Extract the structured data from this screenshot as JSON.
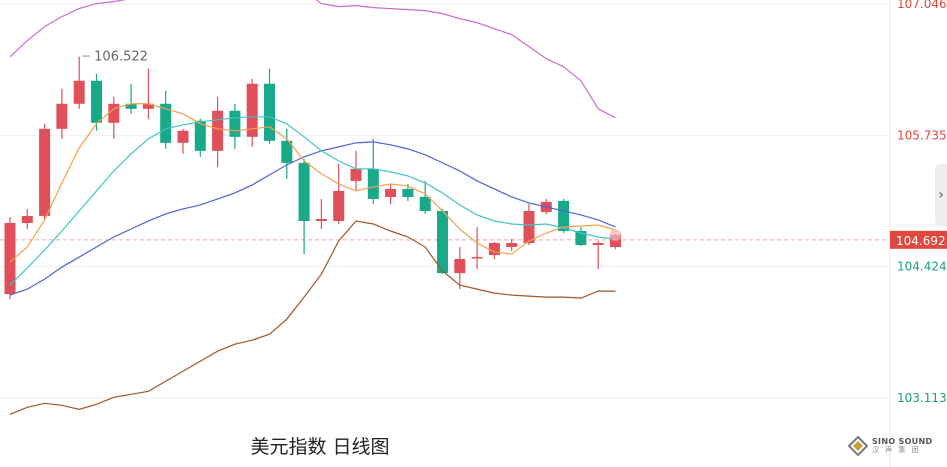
{
  "chart_data": {
    "type": "candlestick",
    "title": "美元指数 日线图",
    "y_ticks": [
      {
        "value": 107.046,
        "label": "107.046",
        "color": "#e0473e"
      },
      {
        "value": 105.735,
        "label": "105.735",
        "color": "#e0473e"
      },
      {
        "value": 104.424,
        "label": "104.424",
        "color": "#1a9f84"
      },
      {
        "value": 103.113,
        "label": "103.113",
        "color": "#1a9f84"
      }
    ],
    "current_price": {
      "value": 104.692,
      "label": "104.692",
      "color": "#e0473e"
    },
    "high_annotation": {
      "label": "106.522",
      "value": 106.522
    },
    "ylim": [
      102.95,
      107.05
    ],
    "colors": {
      "up": "#e0505a",
      "down": "#17a98a",
      "ma_short": "#f4a24a",
      "ma_mid": "#41c6c4",
      "ma_long": "#4f63d8",
      "boll_upper": "#cc6ccc",
      "boll_lower": "#a2562a"
    },
    "candles": [
      {
        "o": 104.15,
        "h": 104.92,
        "l": 104.1,
        "c": 104.86
      },
      {
        "o": 104.86,
        "h": 105.0,
        "l": 104.8,
        "c": 104.93
      },
      {
        "o": 104.93,
        "h": 105.85,
        "l": 104.9,
        "c": 105.8
      },
      {
        "o": 105.8,
        "h": 106.2,
        "l": 105.7,
        "c": 106.05
      },
      {
        "o": 106.05,
        "h": 106.52,
        "l": 106.0,
        "c": 106.28
      },
      {
        "o": 106.28,
        "h": 106.35,
        "l": 105.78,
        "c": 105.86
      },
      {
        "o": 105.86,
        "h": 106.12,
        "l": 105.7,
        "c": 106.05
      },
      {
        "o": 106.05,
        "h": 106.25,
        "l": 105.95,
        "c": 106.0
      },
      {
        "o": 106.0,
        "h": 106.4,
        "l": 105.9,
        "c": 106.05
      },
      {
        "o": 106.05,
        "h": 106.18,
        "l": 105.6,
        "c": 105.66
      },
      {
        "o": 105.66,
        "h": 105.8,
        "l": 105.55,
        "c": 105.78
      },
      {
        "o": 105.88,
        "h": 105.9,
        "l": 105.52,
        "c": 105.58
      },
      {
        "o": 105.58,
        "h": 106.12,
        "l": 105.42,
        "c": 105.98
      },
      {
        "o": 105.98,
        "h": 106.05,
        "l": 105.6,
        "c": 105.72
      },
      {
        "o": 105.72,
        "h": 106.3,
        "l": 105.62,
        "c": 106.25
      },
      {
        "o": 106.25,
        "h": 106.4,
        "l": 105.65,
        "c": 105.68
      },
      {
        "o": 105.68,
        "h": 105.8,
        "l": 105.3,
        "c": 105.46
      },
      {
        "o": 105.46,
        "h": 105.5,
        "l": 104.55,
        "c": 104.88
      },
      {
        "o": 104.88,
        "h": 105.1,
        "l": 104.8,
        "c": 104.9
      },
      {
        "o": 104.88,
        "h": 105.45,
        "l": 104.85,
        "c": 105.18
      },
      {
        "o": 105.28,
        "h": 105.58,
        "l": 105.18,
        "c": 105.4
      },
      {
        "o": 105.4,
        "h": 105.7,
        "l": 105.05,
        "c": 105.1
      },
      {
        "o": 105.12,
        "h": 105.25,
        "l": 105.05,
        "c": 105.2
      },
      {
        "o": 105.2,
        "h": 105.25,
        "l": 105.08,
        "c": 105.12
      },
      {
        "o": 105.12,
        "h": 105.28,
        "l": 104.95,
        "c": 104.98
      },
      {
        "o": 104.98,
        "h": 105.0,
        "l": 104.35,
        "c": 104.36
      },
      {
        "o": 104.36,
        "h": 104.62,
        "l": 104.2,
        "c": 104.5
      },
      {
        "o": 104.52,
        "h": 104.82,
        "l": 104.4,
        "c": 104.52
      },
      {
        "o": 104.54,
        "h": 104.67,
        "l": 104.5,
        "c": 104.66
      },
      {
        "o": 104.62,
        "h": 104.7,
        "l": 104.58,
        "c": 104.66
      },
      {
        "o": 104.66,
        "h": 105.05,
        "l": 104.64,
        "c": 104.98
      },
      {
        "o": 104.97,
        "h": 105.1,
        "l": 104.95,
        "c": 105.07
      },
      {
        "o": 105.08,
        "h": 105.1,
        "l": 104.76,
        "c": 104.78
      },
      {
        "o": 104.78,
        "h": 104.82,
        "l": 104.63,
        "c": 104.64
      },
      {
        "o": 104.64,
        "h": 104.68,
        "l": 104.4,
        "c": 104.66
      },
      {
        "o": 104.62,
        "h": 104.75,
        "l": 104.6,
        "c": 104.74
      }
    ],
    "ma_short": [
      104.47,
      104.62,
      104.89,
      105.26,
      105.61,
      105.85,
      106.0,
      106.05,
      106.05,
      106.0,
      105.95,
      105.85,
      105.8,
      105.78,
      105.8,
      105.82,
      105.7,
      105.48,
      105.35,
      105.25,
      105.18,
      105.22,
      105.25,
      105.23,
      105.15,
      104.98,
      104.8,
      104.66,
      104.57,
      104.55,
      104.68,
      104.76,
      104.82,
      104.83,
      104.84,
      104.79
    ],
    "ma_mid": [
      104.24,
      104.41,
      104.59,
      104.78,
      104.98,
      105.18,
      105.38,
      105.55,
      105.7,
      105.8,
      105.84,
      105.87,
      105.89,
      105.91,
      105.92,
      105.92,
      105.85,
      105.72,
      105.58,
      105.48,
      105.4,
      105.4,
      105.37,
      105.33,
      105.26,
      105.16,
      105.04,
      104.94,
      104.88,
      104.85,
      104.84,
      104.85,
      104.81,
      104.76,
      104.72,
      104.7
    ],
    "ma_long": [
      104.14,
      104.2,
      104.3,
      104.42,
      104.52,
      104.62,
      104.72,
      104.8,
      104.88,
      104.95,
      105.0,
      105.04,
      105.1,
      105.16,
      105.24,
      105.34,
      105.44,
      105.52,
      105.58,
      105.62,
      105.66,
      105.67,
      105.64,
      105.6,
      105.54,
      105.46,
      105.38,
      105.28,
      105.2,
      105.12,
      105.06,
      105.02,
      104.98,
      104.94,
      104.89,
      104.82
    ],
    "boll_upper": [
      106.52,
      106.68,
      106.82,
      106.92,
      107.0,
      107.05,
      107.07,
      107.1,
      107.12,
      107.18,
      107.25,
      107.35,
      107.4,
      107.4,
      107.44,
      107.5,
      107.36,
      107.18,
      107.05,
      107.02,
      107.03,
      107.01,
      107.0,
      106.99,
      106.98,
      106.95,
      106.9,
      106.86,
      106.8,
      106.74,
      106.62,
      106.5,
      106.42,
      106.28,
      106.0,
      105.91
    ],
    "boll_lower": [
      102.95,
      103.02,
      103.06,
      103.04,
      103.0,
      103.05,
      103.12,
      103.15,
      103.18,
      103.28,
      103.38,
      103.48,
      103.58,
      103.65,
      103.69,
      103.75,
      103.9,
      104.12,
      104.35,
      104.68,
      104.88,
      104.85,
      104.78,
      104.72,
      104.62,
      104.38,
      104.24,
      104.2,
      104.16,
      104.14,
      104.13,
      104.12,
      104.12,
      104.11,
      104.18,
      104.18
    ]
  },
  "nav": {
    "arrow": "›"
  },
  "logo": {
    "name": "SINO SOUND",
    "sub": "汉 声 集 团"
  }
}
